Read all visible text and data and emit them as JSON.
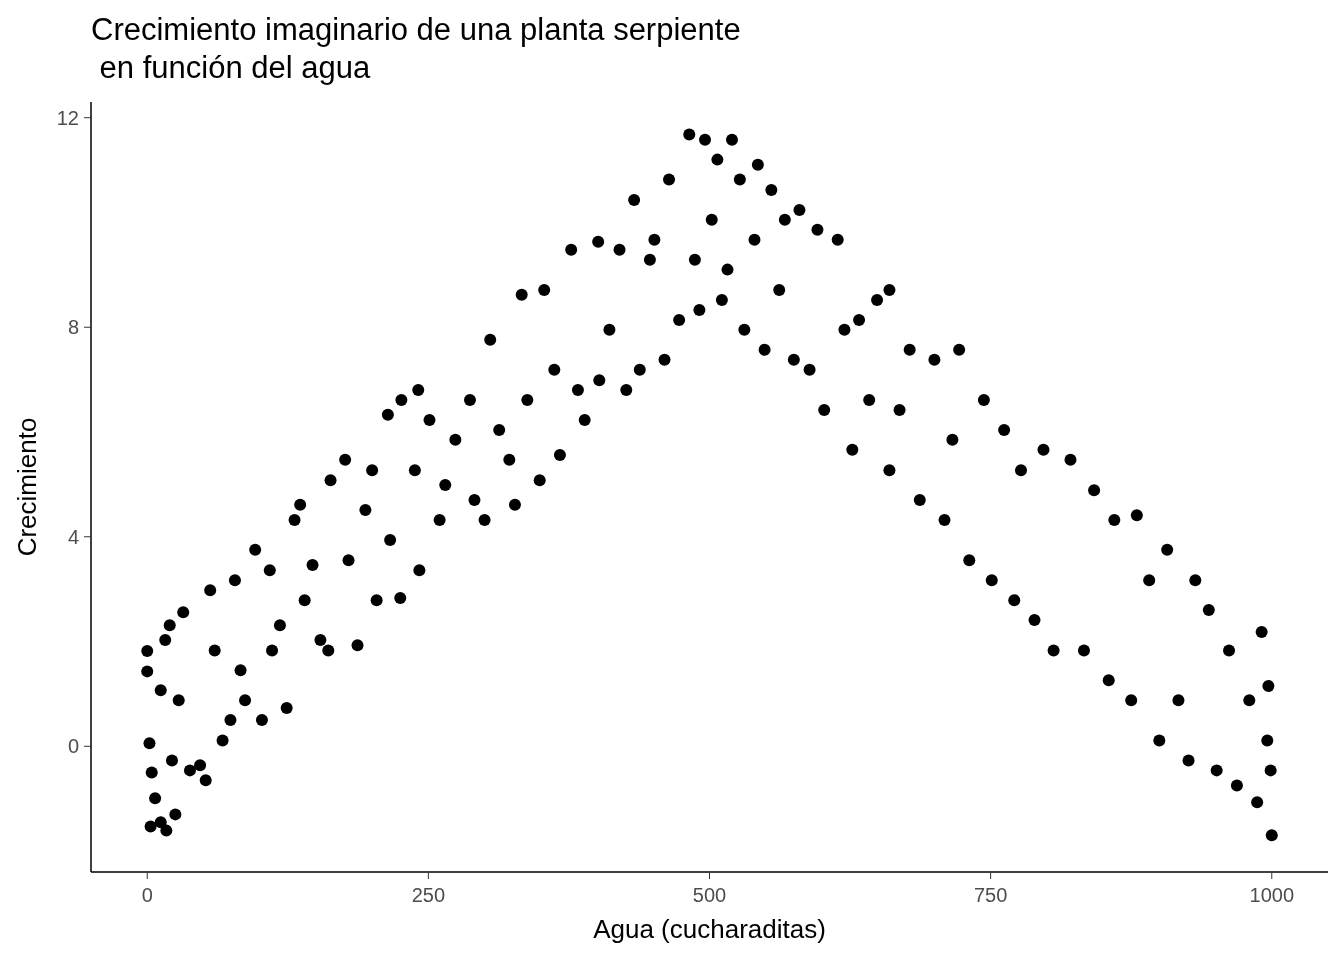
{
  "chart_data": {
    "type": "scatter",
    "title": "Crecimiento imaginario de una planta serpiente\n en función del agua",
    "xlabel": "Agua (cucharaditas)",
    "ylabel": "Crecimiento",
    "marker": "circle",
    "xlim": [
      -50,
      1050
    ],
    "ylim": [
      -2.4,
      12.3
    ],
    "xticks": [
      0,
      250,
      500,
      750,
      1000
    ],
    "yticks": [
      0,
      4,
      8,
      12
    ],
    "series": [
      {
        "color": "#000000",
        "x": [
          0,
          0,
          2,
          3,
          4,
          7,
          12,
          17,
          25,
          12,
          16,
          20,
          22,
          32,
          28,
          38,
          47,
          52,
          56,
          60,
          67,
          74,
          78,
          83,
          87,
          96,
          102,
          109,
          111,
          118,
          124,
          131,
          136,
          140,
          147,
          154,
          163,
          161,
          176,
          179,
          187,
          194,
          200,
          204,
          214,
          216,
          225,
          226,
          238,
          241,
          242,
          251,
          260,
          265,
          274,
          287,
          291,
          300,
          305,
          313,
          322,
          327,
          333,
          338,
          349,
          353,
          362,
          367,
          377,
          383,
          389,
          401,
          402,
          411,
          420,
          426,
          433,
          438,
          447,
          451,
          460,
          464,
          473,
          482,
          487,
          491,
          496,
          502,
          507,
          511,
          516,
          520,
          527,
          531,
          540,
          543,
          549,
          555,
          562,
          567,
          575,
          580,
          589,
          596,
          602,
          614,
          620,
          627,
          633,
          642,
          649,
          660,
          660,
          669,
          678,
          687,
          700,
          709,
          716,
          722,
          731,
          744,
          751,
          762,
          771,
          777,
          789,
          797,
          806,
          821,
          833,
          842,
          855,
          860,
          875,
          880,
          891,
          900,
          907,
          917,
          926,
          932,
          944,
          951,
          962,
          969,
          980,
          987,
          991,
          996,
          997,
          999,
          1000
        ],
        "values": [
          1.82,
          1.43,
          0.06,
          -1.53,
          -0.5,
          -0.99,
          -1.45,
          -1.61,
          -1.3,
          1.07,
          2.03,
          2.31,
          -0.27,
          2.56,
          0.88,
          -0.46,
          -0.36,
          -0.65,
          2.98,
          1.83,
          0.11,
          0.5,
          3.17,
          1.45,
          0.88,
          3.75,
          0.5,
          3.36,
          1.83,
          2.31,
          0.73,
          4.32,
          4.61,
          2.79,
          3.46,
          2.03,
          5.08,
          1.83,
          5.47,
          3.55,
          1.93,
          4.51,
          5.27,
          2.79,
          6.33,
          3.94,
          2.83,
          6.61,
          5.27,
          6.8,
          3.36,
          6.23,
          4.32,
          4.99,
          5.85,
          6.61,
          4.7,
          4.32,
          7.76,
          6.04,
          5.47,
          4.61,
          8.62,
          6.61,
          5.08,
          8.71,
          7.19,
          5.56,
          9.48,
          6.8,
          6.23,
          9.63,
          6.99,
          7.95,
          9.48,
          6.8,
          10.43,
          7.19,
          9.29,
          9.67,
          7.38,
          10.82,
          8.14,
          11.68,
          9.29,
          8.33,
          11.58,
          10.05,
          11.2,
          8.52,
          9.1,
          11.58,
          10.82,
          7.95,
          9.67,
          11.1,
          7.57,
          10.62,
          8.71,
          10.05,
          7.38,
          10.24,
          7.19,
          9.86,
          6.42,
          9.67,
          7.95,
          5.66,
          8.14,
          6.61,
          8.52,
          8.71,
          5.27,
          6.42,
          7.57,
          4.7,
          7.38,
          4.32,
          5.85,
          7.57,
          3.55,
          6.61,
          3.17,
          6.04,
          2.79,
          5.27,
          2.41,
          5.66,
          1.83,
          5.47,
          1.83,
          4.89,
          1.26,
          4.32,
          0.88,
          4.41,
          3.17,
          0.11,
          3.75,
          0.88,
          -0.27,
          3.17,
          2.6,
          -0.46,
          1.83,
          -0.75,
          0.88,
          -1.07,
          2.18,
          0.11,
          1.15,
          -0.46,
          -1.7
        ]
      }
    ]
  }
}
